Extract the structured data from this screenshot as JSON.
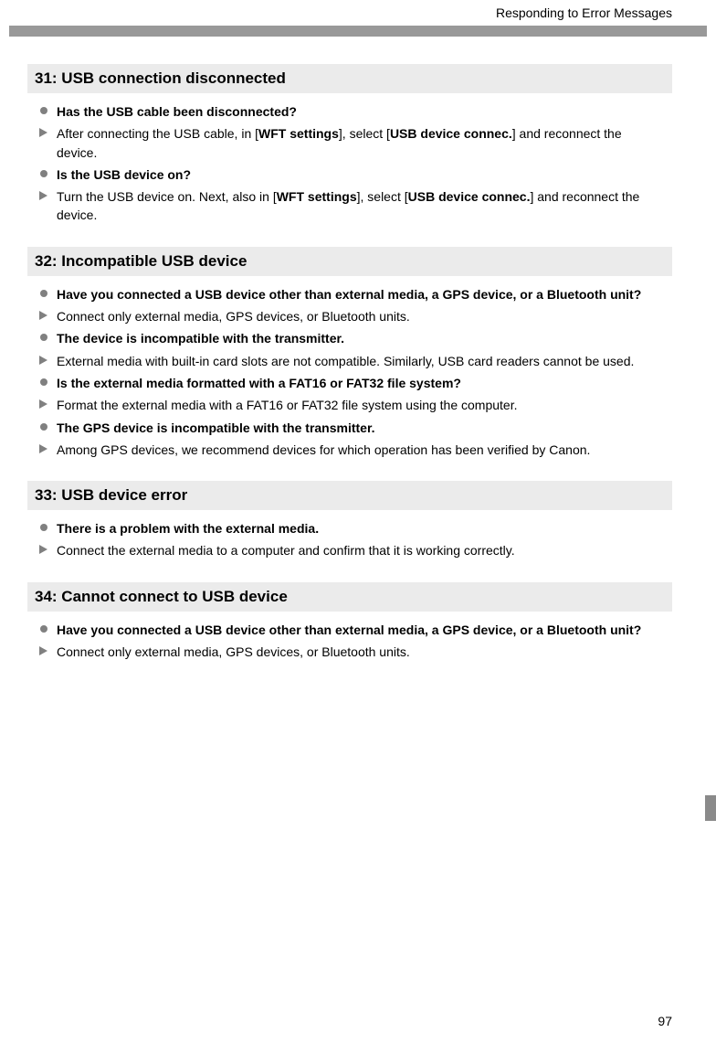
{
  "page": {
    "header_title": "Responding to Error Messages",
    "page_number": "97"
  },
  "colors": {
    "section_bg": "#ebebeb",
    "bar_grey": "#999999",
    "bullet_grey": "#808080",
    "text": "#000000",
    "bg": "#ffffff"
  },
  "sections": [
    {
      "heading": "31:  USB connection disconnected",
      "items": [
        {
          "type": "bullet",
          "bold": true,
          "runs": [
            {
              "t": "Has the USB cable been disconnected?",
              "b": true
            }
          ]
        },
        {
          "type": "arrow",
          "bold": false,
          "runs": [
            {
              "t": "After connecting the USB cable, in ["
            },
            {
              "t": "WFT settings",
              "b": true
            },
            {
              "t": "], select ["
            },
            {
              "t": "USB device connec.",
              "b": true
            },
            {
              "t": "] and reconnect the device."
            }
          ]
        },
        {
          "type": "bullet",
          "bold": true,
          "runs": [
            {
              "t": "Is the USB device on?",
              "b": true
            }
          ]
        },
        {
          "type": "arrow",
          "bold": false,
          "runs": [
            {
              "t": "Turn the USB device on. Next, also in ["
            },
            {
              "t": "WFT settings",
              "b": true
            },
            {
              "t": "], select ["
            },
            {
              "t": "USB device connec.",
              "b": true
            },
            {
              "t": "] and reconnect the device."
            }
          ]
        }
      ]
    },
    {
      "heading": "32:  Incompatible USB device",
      "items": [
        {
          "type": "bullet",
          "bold": true,
          "runs": [
            {
              "t": "Have you connected a USB device other than external media, a GPS device, or a Bluetooth unit?",
              "b": true
            }
          ]
        },
        {
          "type": "arrow",
          "runs": [
            {
              "t": "Connect only external media, GPS devices, or Bluetooth units."
            }
          ]
        },
        {
          "type": "bullet",
          "bold": true,
          "runs": [
            {
              "t": "The device is incompatible with the transmitter.",
              "b": true
            }
          ]
        },
        {
          "type": "arrow",
          "runs": [
            {
              "t": "External media with built-in card slots are not compatible. Similarly, USB card readers cannot be used."
            }
          ]
        },
        {
          "type": "bullet",
          "bold": true,
          "runs": [
            {
              "t": "Is the external media formatted with a FAT16 or FAT32 file system?",
              "b": true
            }
          ]
        },
        {
          "type": "arrow",
          "runs": [
            {
              "t": "Format the external media with a FAT16 or FAT32 file system using the computer."
            }
          ]
        },
        {
          "type": "bullet",
          "bold": true,
          "runs": [
            {
              "t": "The GPS device is incompatible with the transmitter.",
              "b": true
            }
          ]
        },
        {
          "type": "arrow",
          "runs": [
            {
              "t": "Among GPS devices, we recommend devices for which operation has been verified by Canon."
            }
          ]
        }
      ]
    },
    {
      "heading": "33:  USB device error",
      "items": [
        {
          "type": "bullet",
          "bold": true,
          "runs": [
            {
              "t": "There is a problem with the external media.",
              "b": true
            }
          ]
        },
        {
          "type": "arrow",
          "runs": [
            {
              "t": "Connect the external media to a computer and confirm that it is working correctly."
            }
          ]
        }
      ]
    },
    {
      "heading": "34:  Cannot connect to USB device",
      "items": [
        {
          "type": "bullet",
          "bold": true,
          "runs": [
            {
              "t": "Have you connected a USB device other than external media, a GPS device, or a Bluetooth unit?",
              "b": true
            }
          ]
        },
        {
          "type": "arrow",
          "runs": [
            {
              "t": "Connect only external media, GPS devices, or Bluetooth units."
            }
          ]
        }
      ]
    }
  ]
}
